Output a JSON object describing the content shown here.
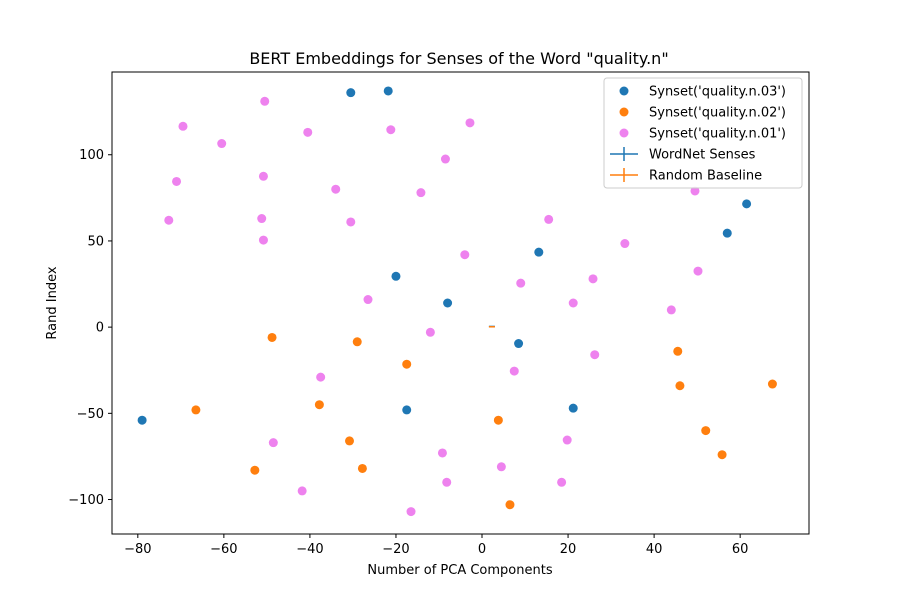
{
  "chart_data": {
    "type": "scatter",
    "title": "BERT Embeddings for Senses of the Word \"quality.n\"",
    "xlabel": "Number of PCA Components",
    "ylabel": "Rand Index",
    "xlim": [
      -86,
      76
    ],
    "ylim": [
      -120,
      148
    ],
    "xticks": [
      -80,
      -60,
      -40,
      -20,
      0,
      20,
      40,
      60
    ],
    "yticks": [
      -100,
      -50,
      0,
      50,
      100
    ],
    "grid": false,
    "legend_position": "top-right",
    "series": [
      {
        "name": "Synset('quality.n.03')",
        "color": "#1f77b4",
        "kind": "scatter",
        "points": [
          [
            -79,
            -54
          ],
          [
            -30.5,
            136
          ],
          [
            -21.8,
            137
          ],
          [
            -20,
            29.5
          ],
          [
            -8,
            14
          ],
          [
            -17.5,
            -48
          ],
          [
            8.5,
            -9.5
          ],
          [
            13.2,
            43.5
          ],
          [
            21.2,
            -47
          ],
          [
            57,
            54.5
          ],
          [
            61.5,
            71.5
          ]
        ]
      },
      {
        "name": "Synset('quality.n.02')",
        "color": "#ff7f0e",
        "kind": "scatter",
        "points": [
          [
            -66.5,
            -48
          ],
          [
            -48.8,
            -6
          ],
          [
            -52.8,
            -83
          ],
          [
            -37.8,
            -45
          ],
          [
            -30.8,
            -66
          ],
          [
            -29,
            -8.5
          ],
          [
            -27.8,
            -82
          ],
          [
            -17.5,
            -21.5
          ],
          [
            3.8,
            -54
          ],
          [
            6.5,
            -103
          ],
          [
            45.5,
            -14
          ],
          [
            46,
            -34
          ],
          [
            52,
            -60
          ],
          [
            55.8,
            -74
          ],
          [
            67.5,
            -33
          ]
        ]
      },
      {
        "name": "Synset('quality.n.01')",
        "color": "#ee82ee",
        "kind": "scatter",
        "points": [
          [
            -69.5,
            116.5
          ],
          [
            -71,
            84.5
          ],
          [
            -72.8,
            62
          ],
          [
            -60.5,
            106.5
          ],
          [
            -50.5,
            131
          ],
          [
            -50.8,
            87.5
          ],
          [
            -51.2,
            63
          ],
          [
            -50.8,
            50.5
          ],
          [
            -40.5,
            113
          ],
          [
            -34,
            80
          ],
          [
            -30.5,
            61
          ],
          [
            -26.5,
            16
          ],
          [
            -21.2,
            114.5
          ],
          [
            -14.2,
            78
          ],
          [
            -12,
            -3
          ],
          [
            -8.5,
            97.5
          ],
          [
            -4,
            42
          ],
          [
            -2.8,
            118.5
          ],
          [
            -37.5,
            -29
          ],
          [
            -48.5,
            -67
          ],
          [
            -41.8,
            -95
          ],
          [
            -9.2,
            -73
          ],
          [
            -8.2,
            -90
          ],
          [
            -16.5,
            -107
          ],
          [
            4.5,
            -81
          ],
          [
            7.5,
            -25.5
          ],
          [
            9,
            25.5
          ],
          [
            15.5,
            62.5
          ],
          [
            21.2,
            14
          ],
          [
            19.8,
            -65.5
          ],
          [
            18.5,
            -90
          ],
          [
            25.8,
            28
          ],
          [
            26.2,
            -16
          ],
          [
            33.2,
            48.5
          ],
          [
            44,
            10
          ],
          [
            49.5,
            79
          ],
          [
            50.2,
            32.5
          ]
        ]
      },
      {
        "name": "WordNet Senses",
        "color": "#1f77b4",
        "kind": "errorbar",
        "points": [
          [
            2.3,
            0.4
          ]
        ]
      },
      {
        "name": "Random Baseline",
        "color": "#ff7f0e",
        "kind": "errorbar",
        "points": [
          [
            2.3,
            0.2
          ]
        ]
      }
    ]
  }
}
